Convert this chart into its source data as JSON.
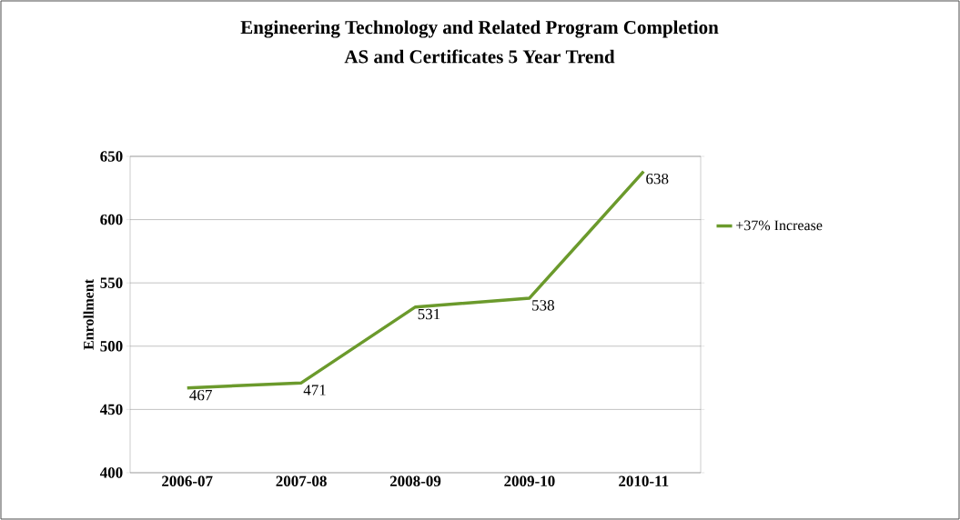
{
  "chart_data": {
    "type": "line",
    "title": "Engineering Technology and Related Program Completion",
    "subtitle": "AS and Certificates 5 Year Trend",
    "ylabel": "Enrollment",
    "categories": [
      "2006-07",
      "2007-08",
      "2008-09",
      "2009-10",
      "2010-11"
    ],
    "series": [
      {
        "name": "+37% Increase",
        "color": "#6b9a2c",
        "values": [
          467,
          471,
          531,
          538,
          638
        ]
      }
    ],
    "ylim": [
      400,
      650
    ],
    "yticks": [
      400,
      450,
      500,
      550,
      600,
      650
    ],
    "grid": "y",
    "legend": "right",
    "data_labels": true,
    "marker": "none",
    "line_style": "solid"
  }
}
